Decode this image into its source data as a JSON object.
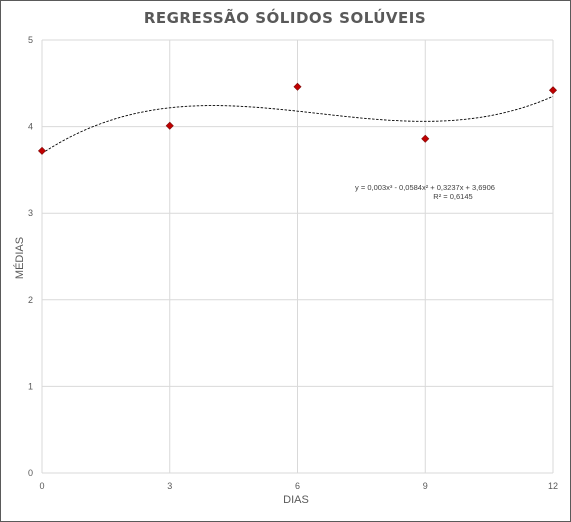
{
  "chart_data": {
    "type": "scatter",
    "title": "REGRESSÃO SÓLIDOS SOLÚVEIS",
    "xlabel": "DIAS",
    "ylabel": "MÉDIAS",
    "xlim": [
      0,
      12
    ],
    "ylim": [
      0,
      5
    ],
    "x_ticks": [
      "0",
      "3",
      "6",
      "9",
      "12"
    ],
    "y_ticks": [
      "0",
      "1",
      "2",
      "3",
      "4",
      "5"
    ],
    "grid": true,
    "series": [
      {
        "x": [
          0,
          3,
          6,
          9,
          12
        ],
        "y": [
          3.72,
          4.01,
          4.46,
          3.86,
          4.42
        ],
        "marker": "diamond",
        "color": "#c00000"
      }
    ],
    "trendline": {
      "type": "polynomial",
      "order": 3,
      "coefficients": [
        0.003,
        -0.0584,
        0.3237,
        3.6906
      ],
      "equation": "y = 0,003x³ - 0,0584x² + 0,3237x + 3,6906",
      "r_squared": "R² = 0,6145",
      "style": "dashed",
      "color": "#000000"
    }
  }
}
